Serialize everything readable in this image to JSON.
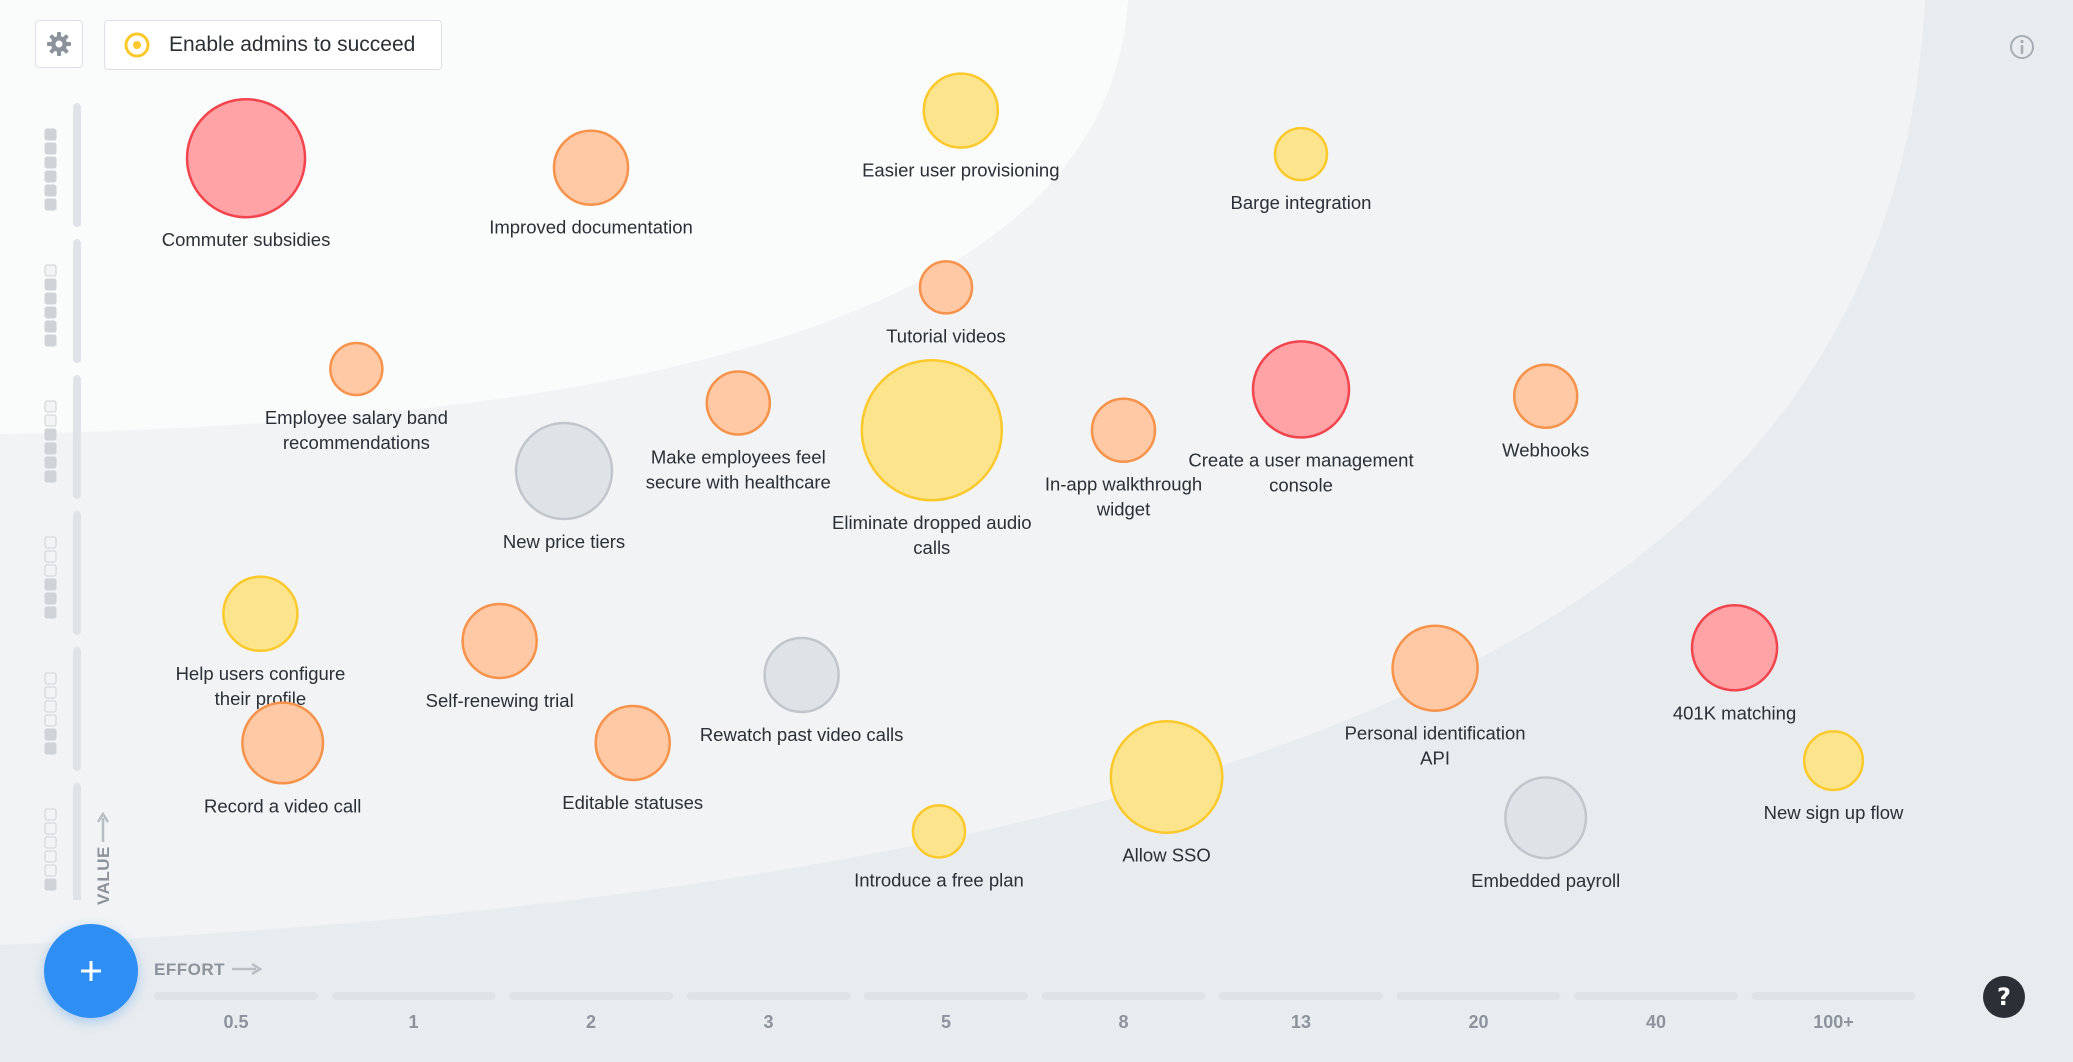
{
  "header": {
    "goal_title": "Enable admins to succeed",
    "icons": [
      "gear-icon",
      "target-icon",
      "info-icon"
    ]
  },
  "buttons": {
    "add_label": "+",
    "help_label": "?"
  },
  "axes": {
    "x_title": "EFFORT",
    "y_title": "VALUE"
  },
  "colors": {
    "red": {
      "fill": "#ffa3a6",
      "stroke": "#f2444c"
    },
    "orange": {
      "fill": "#ffc9a5",
      "stroke": "#f7924a"
    },
    "yellow": {
      "fill": "#fbe48c",
      "stroke": "#fcc92c"
    },
    "gray": {
      "fill": "#dfe2e6",
      "stroke": "#c2c6cc"
    }
  },
  "chart_data": {
    "type": "scatter",
    "xlabel": "EFFORT",
    "ylabel": "VALUE",
    "x_ticks": [
      "0.5",
      "1",
      "2",
      "3",
      "5",
      "8",
      "13",
      "20",
      "40",
      "100+"
    ],
    "y_levels": 6,
    "points": [
      {
        "label": "Commuter subsidies",
        "effort": 0.52,
        "value": 5.55,
        "color": "red",
        "size": 5
      },
      {
        "label": "Improved documentation",
        "effort": 2.0,
        "value": 5.48,
        "color": "orange",
        "size": 3
      },
      {
        "label": "Easier user provisioning",
        "effort": 5.2,
        "value": 5.9,
        "color": "yellow",
        "size": 3
      },
      {
        "label": "Barge integration",
        "effort": 13.0,
        "value": 5.58,
        "color": "yellow",
        "size": 2
      },
      {
        "label": "Tutorial videos",
        "effort": 5.0,
        "value": 4.6,
        "color": "orange",
        "size": 2
      },
      {
        "label": "Employee salary band recommendations",
        "effort": 0.8,
        "value": 4.0,
        "color": "orange",
        "size": 2
      },
      {
        "label": "Make employees feel secure with healthcare",
        "effort": 2.8,
        "value": 3.75,
        "color": "orange",
        "size": 2.5
      },
      {
        "label": "Eliminate dropped audio calls",
        "effort": 4.8,
        "value": 3.55,
        "color": "yellow",
        "size": 6
      },
      {
        "label": "Create a user management console",
        "effort": 13.0,
        "value": 3.85,
        "color": "red",
        "size": 4
      },
      {
        "label": "Webhooks",
        "effort": 26.0,
        "value": 3.8,
        "color": "orange",
        "size": 2.5
      },
      {
        "label": "In-app walkthrough widget",
        "effort": 8.0,
        "value": 3.55,
        "color": "orange",
        "size": 2.5
      },
      {
        "label": "New price tiers",
        "effort": 1.8,
        "value": 3.25,
        "color": "gray",
        "size": 4
      },
      {
        "label": "Help users configure their profile",
        "effort": 0.55,
        "value": 2.2,
        "color": "yellow",
        "size": 3
      },
      {
        "label": "Self-renewing trial",
        "effort": 1.4,
        "value": 2.0,
        "color": "orange",
        "size": 3
      },
      {
        "label": "Rewatch past video calls",
        "effort": 3.3,
        "value": 1.75,
        "color": "gray",
        "size": 3
      },
      {
        "label": "Personal identification API",
        "effort": 18.0,
        "value": 1.8,
        "color": "orange",
        "size": 3.5
      },
      {
        "label": "401K matching",
        "effort": 60.0,
        "value": 1.95,
        "color": "red",
        "size": 3.5
      },
      {
        "label": "Record a video call",
        "effort": 0.6,
        "value": 1.25,
        "color": "orange",
        "size": 3.3
      },
      {
        "label": "Editable statuses",
        "effort": 2.2,
        "value": 1.25,
        "color": "orange",
        "size": 3
      },
      {
        "label": "Introduce a free plan",
        "effort": 4.9,
        "value": 0.6,
        "color": "yellow",
        "size": 2
      },
      {
        "label": "Allow SSO",
        "effort": 9.0,
        "value": 1.0,
        "color": "yellow",
        "size": 4.7
      },
      {
        "label": "Embedded payroll",
        "effort": 26.0,
        "value": 0.7,
        "color": "gray",
        "size": 3.3
      },
      {
        "label": "New sign up flow",
        "effort": 100.0,
        "value": 1.12,
        "color": "yellow",
        "size": 2.3
      }
    ]
  }
}
